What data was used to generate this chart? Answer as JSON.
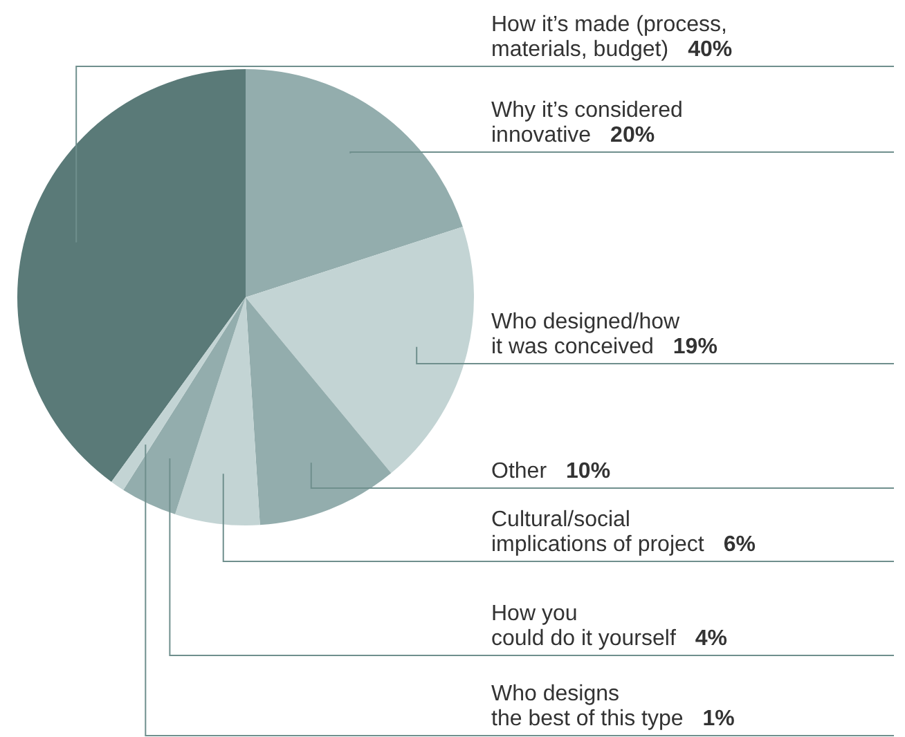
{
  "chart_data": {
    "type": "pie",
    "categories": [
      "How it’s made (process, materials, budget)",
      "Why it’s considered innovative",
      "Who designed/how it was conceived",
      "Other",
      "Cultural/social implications of project",
      "How you could do it yourself",
      "Who designs the best of this type"
    ],
    "values": [
      40,
      20,
      19,
      10,
      6,
      4,
      1
    ],
    "value_labels": [
      "40%",
      "20%",
      "19%",
      "10%",
      "6%",
      "4%",
      "1%"
    ],
    "colors": [
      "#5a7a78",
      "#93adad",
      "#c3d4d4",
      "#93adad",
      "#c3d4d4",
      "#93adad",
      "#c3d4d4"
    ],
    "legend": false
  }
}
